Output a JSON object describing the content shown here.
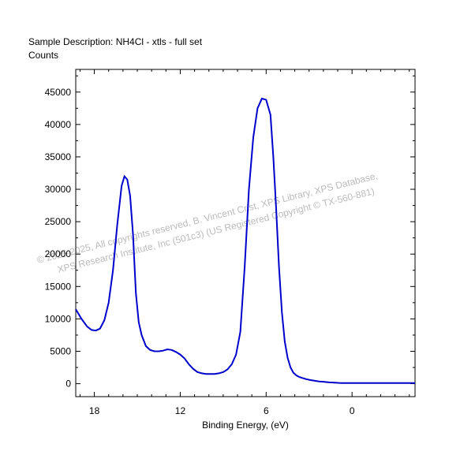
{
  "chart_data": {
    "type": "line",
    "title": "Sample Description:  NH4Cl - xtls - full set",
    "ylabel": "Counts",
    "xlabel": "Binding Energy, (eV)",
    "xlim": [
      19.3,
      -4.4
    ],
    "ylim": [
      -2000,
      48500
    ],
    "x_reversed": true,
    "xticks": [
      18,
      12,
      6,
      0
    ],
    "yticks": [
      0,
      5000,
      10000,
      15000,
      20000,
      25000,
      30000,
      35000,
      40000,
      45000
    ],
    "grid": false,
    "color": "#0000cc",
    "series": [
      {
        "x": [
          19.3,
          18.9,
          18.5,
          18.2,
          17.9,
          17.6,
          17.3,
          17.0,
          16.7,
          16.4,
          16.1,
          15.9,
          15.7,
          15.5,
          15.3,
          15.1,
          14.9,
          14.7,
          14.4,
          14.1,
          13.8,
          13.5,
          13.2,
          12.9,
          12.6,
          12.3,
          12.0,
          11.7,
          11.4,
          11.1,
          10.8,
          10.5,
          10.2,
          9.9,
          9.6,
          9.3,
          9.0,
          8.7,
          8.4,
          8.1,
          7.8,
          7.5,
          7.2,
          6.9,
          6.6,
          6.3,
          6.0,
          5.7,
          5.5,
          5.3,
          5.1,
          4.9,
          4.7,
          4.5,
          4.3,
          4.1,
          3.9,
          3.7,
          3.5,
          3.2,
          2.9,
          2.6,
          2.3,
          2.0,
          1.6,
          1.2,
          0.8,
          0.4,
          0.0,
          -0.5,
          -1.0,
          -1.5,
          -2.0,
          -2.5,
          -3.0,
          -3.5,
          -4.0,
          -4.4
        ],
        "y": [
          11500,
          10000,
          8800,
          8300,
          8200,
          8500,
          9800,
          12500,
          17500,
          24500,
          30500,
          32000,
          31500,
          29000,
          23000,
          14000,
          9500,
          7500,
          5800,
          5200,
          5000,
          5000,
          5100,
          5300,
          5200,
          4900,
          4500,
          3900,
          3000,
          2300,
          1800,
          1600,
          1500,
          1500,
          1500,
          1600,
          1800,
          2200,
          3000,
          4500,
          8000,
          18000,
          30000,
          38000,
          42500,
          44000,
          43800,
          41500,
          35000,
          27000,
          18000,
          11000,
          6500,
          4000,
          2500,
          1700,
          1300,
          1050,
          900,
          700,
          550,
          450,
          350,
          300,
          200,
          150,
          100,
          100,
          100,
          100,
          100,
          100,
          100,
          100,
          100,
          100,
          100,
          100
        ]
      }
    ],
    "watermark": {
      "line1": "© 2025-2025,  All copyrights reserved,   B. Vincent Crist,  XPS Library, XPS Database,",
      "line2": "XPS Research Institute, Inc (501c3)   (US Registered Copyright © TX-560-881)"
    }
  }
}
